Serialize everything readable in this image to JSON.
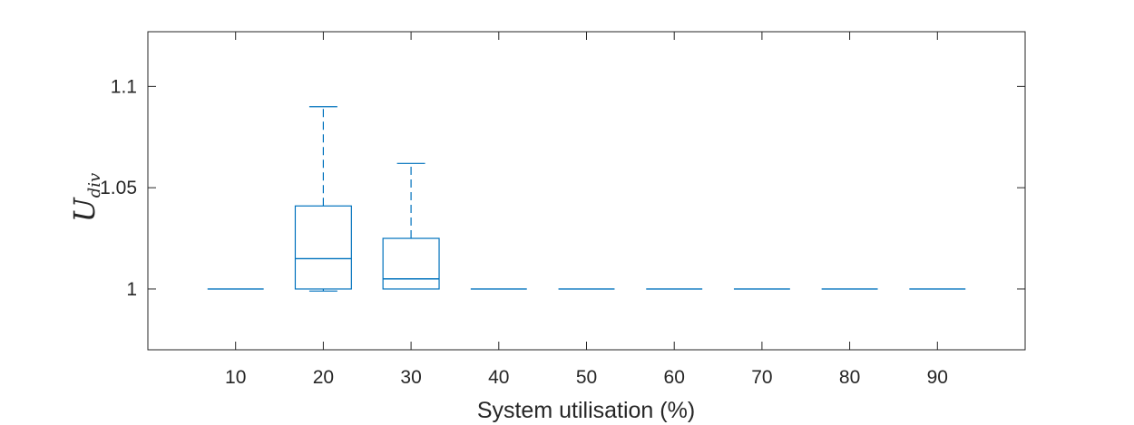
{
  "chart_data": {
    "type": "box",
    "xlabel": "System utilisation (%)",
    "ylabel": "U",
    "ylabel_subscript": "div",
    "categories": [
      "10",
      "20",
      "30",
      "40",
      "50",
      "60",
      "70",
      "80",
      "90"
    ],
    "yticks": [
      1,
      1.05,
      1.1
    ],
    "ytick_labels": [
      "1",
      "1.05",
      "1.1"
    ],
    "ylim": [
      0.97,
      1.127
    ],
    "grid": false,
    "color": "#0072BD",
    "boxes": [
      {
        "category": "10",
        "lower_whisker": 1.0,
        "q1": 1.0,
        "median": 1.0,
        "q3": 1.0,
        "upper_whisker": 1.0
      },
      {
        "category": "20",
        "lower_whisker": 0.999,
        "q1": 1.0,
        "median": 1.015,
        "q3": 1.041,
        "upper_whisker": 1.09
      },
      {
        "category": "30",
        "lower_whisker": 1.0,
        "q1": 1.0,
        "median": 1.005,
        "q3": 1.025,
        "upper_whisker": 1.062
      },
      {
        "category": "40",
        "lower_whisker": 1.0,
        "q1": 1.0,
        "median": 1.0,
        "q3": 1.0,
        "upper_whisker": 1.0
      },
      {
        "category": "50",
        "lower_whisker": 1.0,
        "q1": 1.0,
        "median": 1.0,
        "q3": 1.0,
        "upper_whisker": 1.0
      },
      {
        "category": "60",
        "lower_whisker": 1.0,
        "q1": 1.0,
        "median": 1.0,
        "q3": 1.0,
        "upper_whisker": 1.0
      },
      {
        "category": "70",
        "lower_whisker": 1.0,
        "q1": 1.0,
        "median": 1.0,
        "q3": 1.0,
        "upper_whisker": 1.0
      },
      {
        "category": "80",
        "lower_whisker": 1.0,
        "q1": 1.0,
        "median": 1.0,
        "q3": 1.0,
        "upper_whisker": 1.0
      },
      {
        "category": "90",
        "lower_whisker": 1.0,
        "q1": 1.0,
        "median": 1.0,
        "q3": 1.0,
        "upper_whisker": 1.0
      }
    ]
  }
}
